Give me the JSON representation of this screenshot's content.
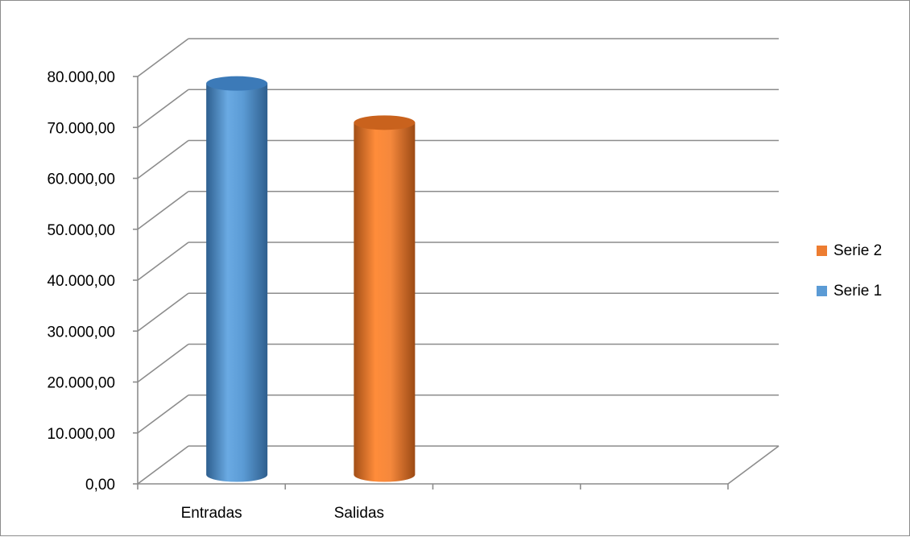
{
  "chart_data": {
    "type": "bar",
    "style": "3d-cylinder",
    "categories": [
      "Entradas",
      "Salidas"
    ],
    "series": [
      {
        "name": "Serie 1",
        "color": "#5b9bd5",
        "values": [
          76500,
          null
        ]
      },
      {
        "name": "Serie 2",
        "color": "#ed7d31",
        "values": [
          null,
          68800
        ]
      }
    ],
    "ylim": [
      0,
      80000
    ],
    "y_ticks": [
      "0,00",
      "10.000,00",
      "20.000,00",
      "30.000,00",
      "40.000,00",
      "50.000,00",
      "60.000,00",
      "70.000,00",
      "80.000,00"
    ],
    "grid": true,
    "legend": {
      "position": "right",
      "entries": [
        "Serie 2",
        "Serie 1"
      ]
    },
    "title": "",
    "xlabel": "",
    "ylabel": ""
  }
}
